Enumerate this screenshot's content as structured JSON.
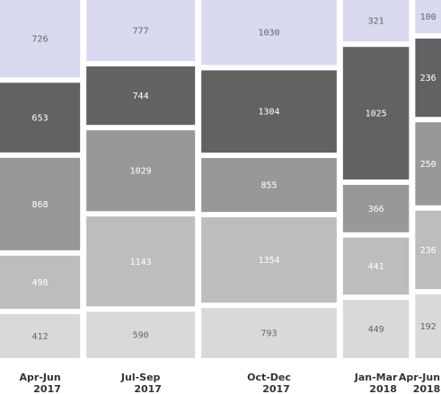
{
  "chart_data": {
    "type": "mosaic",
    "categories": [
      {
        "line1": "Apr-Jun",
        "line2": "2017"
      },
      {
        "line1": "Jul-Sep",
        "line2": "2017"
      },
      {
        "line1": "Oct-Dec",
        "line2": "2017"
      },
      {
        "line1": "Jan-Mar",
        "line2": "2018"
      },
      {
        "line1": "Apr-Jun",
        "line2": "2018"
      }
    ],
    "segments": [
      {
        "color": "#d9d9ef",
        "text_color": "#666666"
      },
      {
        "color": "#626262",
        "text_color": "#ffffff"
      },
      {
        "color": "#989898",
        "text_color": "#ffffff"
      },
      {
        "color": "#bdbdbd",
        "text_color": "#ffffff"
      },
      {
        "color": "#d9d9d9",
        "text_color": "#666666"
      }
    ],
    "values": [
      [
        726,
        653,
        868,
        498,
        412
      ],
      [
        777,
        744,
        1029,
        1143,
        590
      ],
      [
        1030,
        1304,
        855,
        1354,
        793
      ],
      [
        321,
        1025,
        366,
        441,
        449
      ],
      [
        100,
        236,
        250,
        236,
        192
      ]
    ]
  }
}
